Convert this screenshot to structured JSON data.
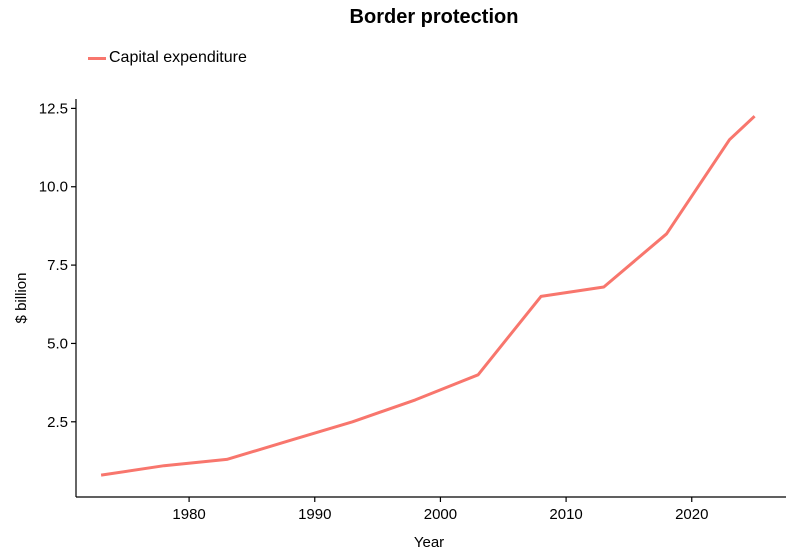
{
  "chart_data": {
    "type": "line",
    "title": "Border protection",
    "xlabel": "Year",
    "ylabel": "$ billion",
    "xlim": [
      1971,
      2027.5
    ],
    "ylim": [
      0.1,
      12.8
    ],
    "xticks": [
      1980,
      1990,
      2000,
      2010,
      2020
    ],
    "yticks": [
      2.5,
      5.0,
      7.5,
      10.0,
      12.5
    ],
    "ytick_labels": [
      "2.5",
      "5.0",
      "7.5",
      "10.0",
      "12.5"
    ],
    "xtick_labels": [
      "1980",
      "1990",
      "2000",
      "2010",
      "2020"
    ],
    "grid": false,
    "legend_position": "top-left",
    "series": [
      {
        "name": "Capital expenditure",
        "color": "#F8766D",
        "x": [
          1973,
          1978,
          1983,
          1988,
          1993,
          1998,
          2003,
          2008,
          2013,
          2018,
          2023,
          2025
        ],
        "y": [
          0.8,
          1.1,
          1.3,
          1.9,
          2.5,
          3.2,
          4.0,
          6.5,
          6.8,
          8.5,
          11.5,
          12.25
        ]
      }
    ]
  }
}
